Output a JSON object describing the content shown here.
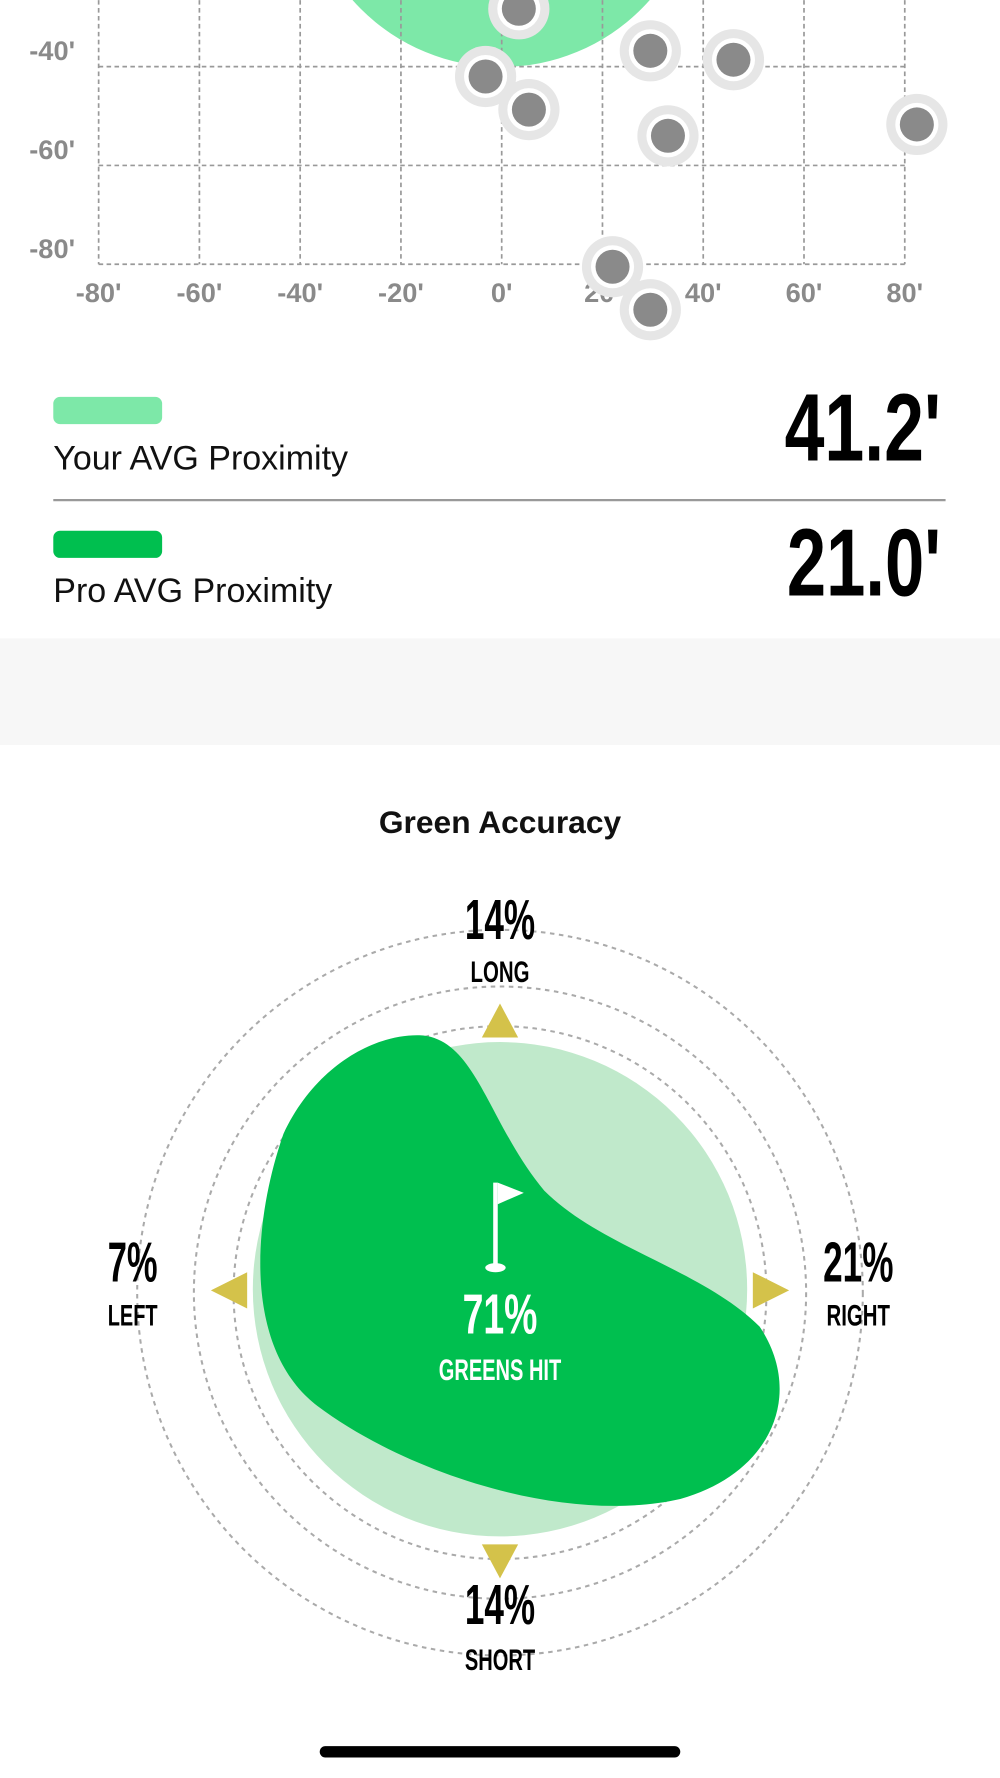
{
  "chart_data": {
    "type": "scatter",
    "x": [
      3.4,
      29.5,
      46,
      -3.2,
      5.4,
      33,
      82.4,
      22,
      29.5
    ],
    "values": [
      -28.3,
      -36.8,
      -38.6,
      -42,
      -48.7,
      -54,
      -51.7,
      -80.5,
      -89.2
    ],
    "color": "#8a8a8a",
    "xlim": [
      -80,
      80
    ],
    "ylim": [
      -80,
      -27
    ],
    "xticks": [
      {
        "value": -80,
        "label": "-80'"
      },
      {
        "value": -60,
        "label": "-60'"
      },
      {
        "value": -40,
        "label": "-40'"
      },
      {
        "value": -20,
        "label": "-20'"
      },
      {
        "value": 0,
        "label": "0'"
      },
      {
        "value": 20,
        "label": "20'"
      },
      {
        "value": 40,
        "label": "40'"
      },
      {
        "value": 60,
        "label": "60'"
      },
      {
        "value": 80,
        "label": "80'"
      }
    ],
    "yticks": [
      {
        "value": -40,
        "label": "-40'"
      },
      {
        "value": -60,
        "label": "-60'"
      },
      {
        "value": -80,
        "label": "-80'"
      }
    ],
    "grid": true
  },
  "legend": [
    {
      "label": "Your AVG Proximity",
      "value": "41.2'",
      "color": "#7de8a8"
    },
    {
      "label": "Pro AVG Proximity",
      "value": "21.0'",
      "color": "#00bf4f"
    }
  ],
  "green_accuracy": {
    "title": "Green Accuracy",
    "center": {
      "value": "71%",
      "label": "GREENS HIT"
    },
    "long": {
      "value": "14%",
      "label": "LONG"
    },
    "left": {
      "value": "7%",
      "label": "LEFT"
    },
    "right": {
      "value": "21%",
      "label": "RIGHT"
    },
    "short": {
      "value": "14%",
      "label": "SHORT"
    }
  }
}
